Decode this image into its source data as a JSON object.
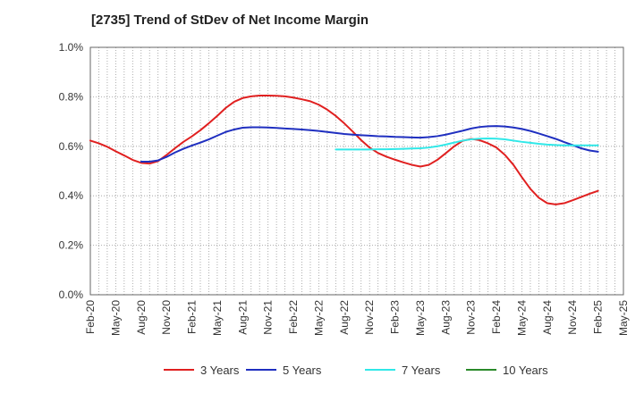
{
  "chart_data": {
    "type": "line",
    "title": "[2735]  Trend of StDev of Net Income Margin",
    "xlabel": "",
    "ylabel": "",
    "ylim": [
      0,
      1.0
    ],
    "yticks": [
      "0.0%",
      "0.2%",
      "0.4%",
      "0.6%",
      "0.8%",
      "1.0%"
    ],
    "ytick_values": [
      0,
      0.2,
      0.4,
      0.6,
      0.8,
      1.0
    ],
    "xticks": [
      "Feb-20",
      "May-20",
      "Aug-20",
      "Nov-20",
      "Feb-21",
      "May-21",
      "Aug-21",
      "Nov-21",
      "Feb-22",
      "May-22",
      "Aug-22",
      "Nov-22",
      "Feb-23",
      "May-23",
      "Aug-23",
      "Nov-23",
      "Feb-24",
      "May-24",
      "Aug-24",
      "Nov-24",
      "Feb-25",
      "May-25"
    ],
    "grid": true,
    "legend_position": "bottom",
    "series": [
      {
        "name": "3 Years",
        "color": "#e02020",
        "x": [
          "Feb-20",
          "Mar-20",
          "Apr-20",
          "May-20",
          "Jun-20",
          "Jul-20",
          "Aug-20",
          "Sep-20",
          "Oct-20",
          "Nov-20",
          "Dec-20",
          "Jan-21",
          "Feb-21",
          "Mar-21",
          "Apr-21",
          "May-21",
          "Jun-21",
          "Jul-21",
          "Aug-21",
          "Sep-21",
          "Oct-21",
          "Nov-21",
          "Dec-21",
          "Jan-22",
          "Feb-22",
          "Mar-22",
          "Apr-22",
          "May-22",
          "Jun-22",
          "Jul-22",
          "Aug-22",
          "Sep-22",
          "Oct-22",
          "Nov-22",
          "Dec-22",
          "Jan-23",
          "Feb-23",
          "Mar-23",
          "Apr-23",
          "May-23",
          "Jun-23",
          "Jul-23",
          "Aug-23",
          "Sep-23",
          "Oct-23",
          "Nov-23",
          "Dec-23",
          "Jan-24",
          "Feb-24",
          "Mar-24",
          "Apr-24",
          "May-24",
          "Jun-24",
          "Jul-24",
          "Aug-24",
          "Sep-24",
          "Oct-24",
          "Nov-24",
          "Dec-24",
          "Jan-25",
          "Feb-25"
        ],
        "values": [
          0.623,
          0.612,
          0.598,
          0.58,
          0.563,
          0.545,
          0.533,
          0.53,
          0.54,
          0.565,
          0.592,
          0.618,
          0.64,
          0.665,
          0.693,
          0.723,
          0.755,
          0.78,
          0.795,
          0.802,
          0.805,
          0.805,
          0.804,
          0.802,
          0.797,
          0.79,
          0.782,
          0.768,
          0.748,
          0.723,
          0.693,
          0.66,
          0.625,
          0.595,
          0.573,
          0.558,
          0.546,
          0.535,
          0.525,
          0.518,
          0.525,
          0.545,
          0.572,
          0.6,
          0.622,
          0.63,
          0.625,
          0.612,
          0.595,
          0.565,
          0.525,
          0.475,
          0.428,
          0.392,
          0.37,
          0.365,
          0.37,
          0.382,
          0.395,
          0.408,
          0.42
        ]
      },
      {
        "name": "5 Years",
        "color": "#1f2fc0",
        "x": [
          "Feb-20",
          "Mar-20",
          "Apr-20",
          "May-20",
          "Jun-20",
          "Jul-20",
          "Aug-20",
          "Sep-20",
          "Oct-20",
          "Nov-20",
          "Dec-20",
          "Jan-21",
          "Feb-21",
          "Mar-21",
          "Apr-21",
          "May-21",
          "Jun-21",
          "Jul-21",
          "Aug-21",
          "Sep-21",
          "Oct-21",
          "Nov-21",
          "Dec-21",
          "Jan-22",
          "Feb-22",
          "Mar-22",
          "Apr-22",
          "May-22",
          "Jun-22",
          "Jul-22",
          "Aug-22",
          "Sep-22",
          "Oct-22",
          "Nov-22",
          "Dec-22",
          "Jan-23",
          "Feb-23",
          "Mar-23",
          "Apr-23",
          "May-23",
          "Jun-23",
          "Jul-23",
          "Aug-23",
          "Sep-23",
          "Oct-23",
          "Nov-23",
          "Dec-23",
          "Jan-24",
          "Feb-24",
          "Mar-24",
          "Apr-24",
          "May-24",
          "Jun-24",
          "Jul-24",
          "Aug-24",
          "Sep-24",
          "Oct-24",
          "Nov-24",
          "Dec-24",
          "Jan-25",
          "Feb-25"
        ],
        "values": [
          null,
          null,
          null,
          null,
          null,
          null,
          0.538,
          0.538,
          0.543,
          0.557,
          0.575,
          0.59,
          0.603,
          0.615,
          0.628,
          0.643,
          0.658,
          0.668,
          0.675,
          0.677,
          0.677,
          0.676,
          0.674,
          0.672,
          0.67,
          0.668,
          0.665,
          0.662,
          0.658,
          0.654,
          0.65,
          0.647,
          0.645,
          0.643,
          0.641,
          0.64,
          0.638,
          0.637,
          0.636,
          0.635,
          0.637,
          0.641,
          0.647,
          0.655,
          0.663,
          0.672,
          0.678,
          0.681,
          0.682,
          0.68,
          0.676,
          0.67,
          0.662,
          0.652,
          0.641,
          0.63,
          0.617,
          0.605,
          0.592,
          0.583,
          0.578
        ]
      },
      {
        "name": "7 Years",
        "color": "#30e8e8",
        "x": [
          "Jul-22",
          "Aug-22",
          "Sep-22",
          "Oct-22",
          "Nov-22",
          "Dec-22",
          "Jan-23",
          "Feb-23",
          "Mar-23",
          "Apr-23",
          "May-23",
          "Jun-23",
          "Jul-23",
          "Aug-23",
          "Sep-23",
          "Oct-23",
          "Nov-23",
          "Dec-23",
          "Jan-24",
          "Feb-24",
          "Mar-24",
          "Apr-24",
          "May-24",
          "Jun-24",
          "Jul-24",
          "Aug-24",
          "Sep-24",
          "Oct-24",
          "Nov-24",
          "Dec-24",
          "Jan-25",
          "Feb-25"
        ],
        "values": [
          0.587,
          0.587,
          0.587,
          0.587,
          0.587,
          0.588,
          0.588,
          0.589,
          0.59,
          0.591,
          0.592,
          0.595,
          0.6,
          0.607,
          0.615,
          0.623,
          0.628,
          0.631,
          0.632,
          0.631,
          0.628,
          0.623,
          0.618,
          0.614,
          0.61,
          0.607,
          0.605,
          0.604,
          0.604,
          0.604,
          0.604,
          0.604
        ]
      },
      {
        "name": "10 Years",
        "color": "#2a8a2a",
        "x": [],
        "values": []
      }
    ]
  }
}
